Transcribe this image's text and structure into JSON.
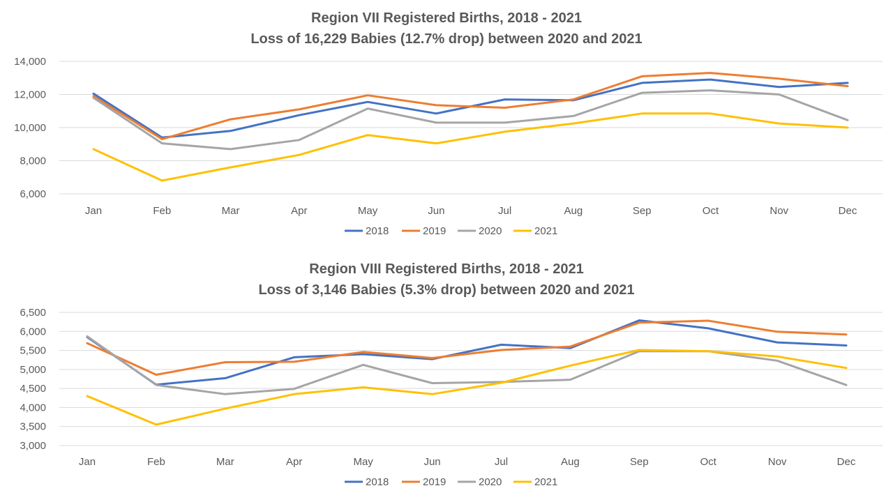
{
  "chart_data": [
    {
      "type": "line",
      "title": "Region VII Registered Births, 2018 - 2021",
      "subtitle": "Loss of 16,229 Babies (12.7% drop) between 2020 and 2021",
      "categories": [
        "Jan",
        "Feb",
        "Mar",
        "Apr",
        "May",
        "Jun",
        "Jul",
        "Aug",
        "Sep",
        "Oct",
        "Nov",
        "Dec"
      ],
      "ylim": [
        6000,
        14000
      ],
      "yticks": [
        6000,
        8000,
        10000,
        12000,
        14000
      ],
      "ytick_labels": [
        "6,000",
        "8,000",
        "10,000",
        "12,000",
        "14,000"
      ],
      "grid": true,
      "legend": "bottom",
      "series": [
        {
          "name": "2018",
          "color": "#4472c4",
          "values": [
            12050,
            9400,
            9800,
            10750,
            11550,
            10850,
            11700,
            11650,
            12700,
            12900,
            12450,
            12700
          ]
        },
        {
          "name": "2019",
          "color": "#ed7d31",
          "values": [
            11900,
            9300,
            10500,
            11100,
            11950,
            11350,
            11200,
            11700,
            13100,
            13300,
            12950,
            12500
          ]
        },
        {
          "name": "2020",
          "color": "#a5a5a5",
          "values": [
            11800,
            9050,
            8700,
            9250,
            11150,
            10300,
            10300,
            10700,
            12100,
            12250,
            12000,
            10450
          ]
        },
        {
          "name": "2021",
          "color": "#ffc000",
          "values": [
            8700,
            6800,
            7600,
            8350,
            9550,
            9050,
            9750,
            10250,
            10850,
            10850,
            10250,
            10000
          ]
        }
      ]
    },
    {
      "type": "line",
      "title": "Region VIII Registered Births, 2018 - 2021",
      "subtitle": "Loss of 3,146 Babies (5.3% drop) between 2020 and 2021",
      "categories": [
        "Jan",
        "Feb",
        "Mar",
        "Apr",
        "May",
        "Jun",
        "Jul",
        "Aug",
        "Sep",
        "Oct",
        "Nov",
        "Dec"
      ],
      "ylim": [
        3000,
        6500
      ],
      "yticks": [
        3000,
        3500,
        4000,
        4500,
        5000,
        5500,
        6000,
        6500
      ],
      "ytick_labels": [
        "3,000",
        "3,500",
        "4,000",
        "4,500",
        "5,000",
        "5,500",
        "6,000",
        "6,500"
      ],
      "grid": true,
      "legend": "bottom",
      "series": [
        {
          "name": "2018",
          "color": "#4472c4",
          "values": [
            5850,
            4600,
            4770,
            5320,
            5400,
            5270,
            5650,
            5560,
            6290,
            6080,
            5710,
            5630
          ]
        },
        {
          "name": "2019",
          "color": "#ed7d31",
          "values": [
            5690,
            4860,
            5190,
            5200,
            5460,
            5300,
            5510,
            5600,
            6230,
            6280,
            5990,
            5920
          ]
        },
        {
          "name": "2020",
          "color": "#a5a5a5",
          "values": [
            5870,
            4590,
            4350,
            4490,
            5120,
            4640,
            4670,
            4730,
            5480,
            5480,
            5230,
            4590
          ]
        },
        {
          "name": "2021",
          "color": "#ffc000",
          "values": [
            4300,
            3550,
            3970,
            4350,
            4530,
            4350,
            4650,
            5100,
            5510,
            5480,
            5340,
            5040
          ]
        }
      ]
    }
  ]
}
